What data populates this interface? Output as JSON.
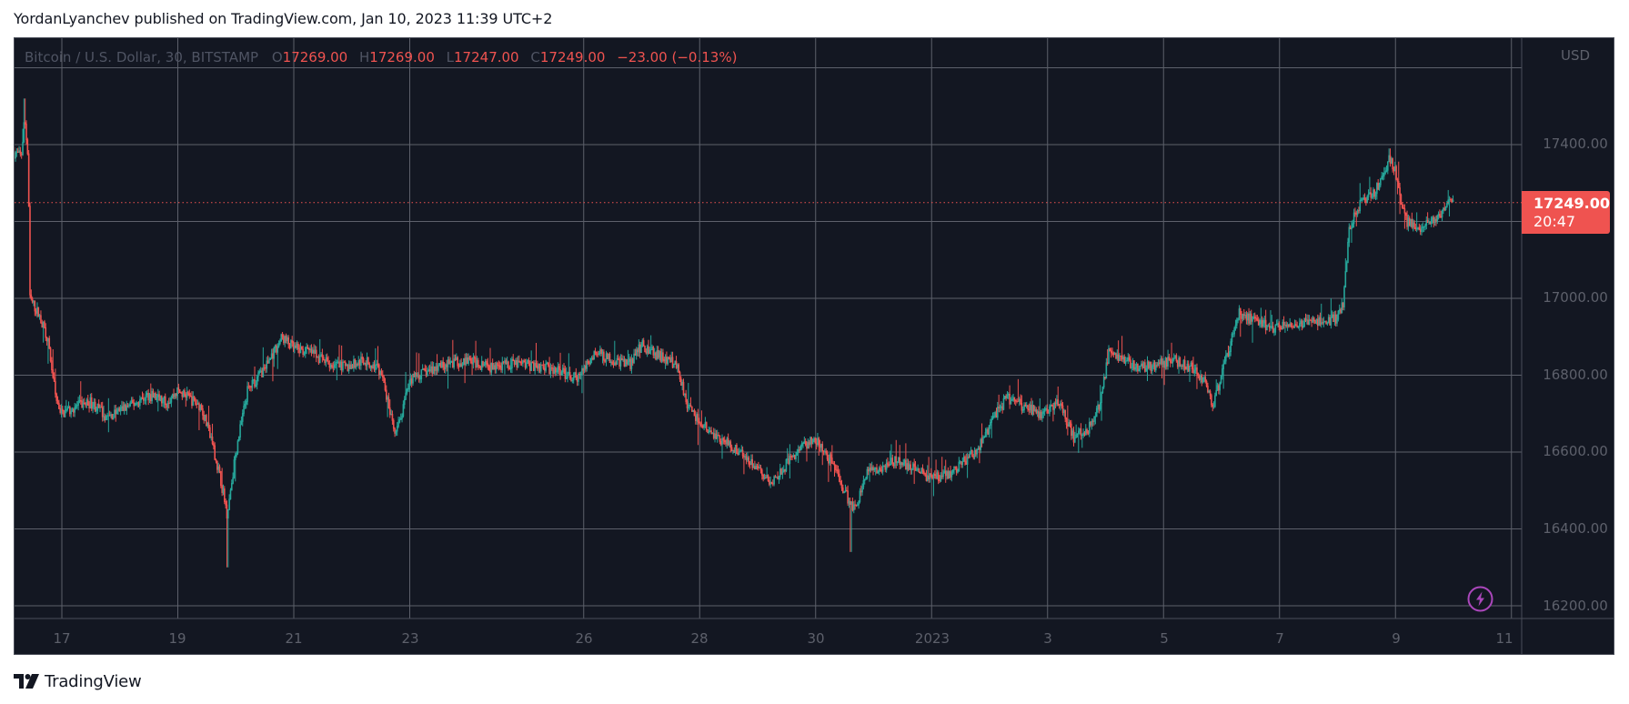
{
  "header": {
    "published_line": "YordanLyanchev published on TradingView.com, Jan 10, 2023 11:39 UTC+2"
  },
  "legend": {
    "symbol": "Bitcoin / U.S. Dollar, 30, BITSTAMP",
    "open_label": "O",
    "open": "17269.00",
    "high_label": "H",
    "high": "17269.00",
    "low_label": "L",
    "low": "17247.00",
    "close_label": "C",
    "close": "17249.00",
    "change": "−23.00 (−0.13%)"
  },
  "price_axis": {
    "currency": "USD",
    "ticks": [
      "17400.00",
      "17000.00",
      "16800.00",
      "16600.00",
      "16400.00",
      "16200.00"
    ],
    "last_price": "17249.00",
    "countdown": "20:47"
  },
  "time_axis": {
    "ticks": [
      "17",
      "19",
      "21",
      "23",
      "26",
      "28",
      "30",
      "2023",
      "3",
      "5",
      "7",
      "9",
      "11"
    ]
  },
  "colors": {
    "background": "#131722",
    "up": "#26a69a",
    "down": "#ef5350",
    "grid": "#5d606b",
    "last_price": "#ef5350",
    "bolt": "#ab47bc"
  },
  "footer": {
    "brand": "TradingView"
  },
  "chart_data": {
    "type": "candlestick",
    "title": "Bitcoin / U.S. Dollar, 30, BITSTAMP",
    "xlabel": "",
    "ylabel": "USD",
    "interval": "30",
    "exchange": "BITSTAMP",
    "ohlc_last": {
      "open": 17269.0,
      "high": 17269.0,
      "low": 17247.0,
      "close": 17249.0,
      "change": -23.0,
      "change_pct": -0.13
    },
    "ylim": [
      16165,
      17630
    ],
    "y_ticks": [
      16200,
      16400,
      16600,
      16800,
      17000,
      17200,
      17400,
      17600
    ],
    "y_tick_labels_visible": [
      "17400.00",
      "17000.00",
      "16800.00",
      "16600.00",
      "16400.00",
      "16200.00"
    ],
    "x_ticks": [
      {
        "label": "17",
        "day": 17
      },
      {
        "label": "19",
        "day": 19
      },
      {
        "label": "21",
        "day": 21
      },
      {
        "label": "23",
        "day": 23
      },
      {
        "label": "26",
        "day": 26
      },
      {
        "label": "28",
        "day": 28
      },
      {
        "label": "30",
        "day": 30
      },
      {
        "label": "2023",
        "day": 32
      },
      {
        "label": "3",
        "day": 34
      },
      {
        "label": "5",
        "day": 36
      },
      {
        "label": "7",
        "day": 38
      },
      {
        "label": "9",
        "day": 40
      },
      {
        "label": "11",
        "day": 42
      }
    ],
    "x_range_days": [
      16.18,
      41.4
    ],
    "grid": true,
    "last_price_line": 17249.0,
    "close_path": [
      [
        16.18,
        17380
      ],
      [
        16.3,
        17370
      ],
      [
        16.36,
        17470
      ],
      [
        16.42,
        17360
      ],
      [
        16.45,
        17000
      ],
      [
        16.6,
        16960
      ],
      [
        16.75,
        16900
      ],
      [
        16.9,
        16740
      ],
      [
        17.0,
        16700
      ],
      [
        17.25,
        16720
      ],
      [
        17.5,
        16730
      ],
      [
        17.8,
        16690
      ],
      [
        18.0,
        16710
      ],
      [
        18.3,
        16730
      ],
      [
        18.5,
        16750
      ],
      [
        18.8,
        16730
      ],
      [
        19.0,
        16760
      ],
      [
        19.2,
        16740
      ],
      [
        19.4,
        16720
      ],
      [
        19.6,
        16620
      ],
      [
        19.75,
        16520
      ],
      [
        19.85,
        16440
      ],
      [
        20.0,
        16600
      ],
      [
        20.2,
        16760
      ],
      [
        20.5,
        16820
      ],
      [
        20.8,
        16900
      ],
      [
        21.0,
        16870
      ],
      [
        21.3,
        16860
      ],
      [
        21.6,
        16830
      ],
      [
        21.9,
        16820
      ],
      [
        22.2,
        16840
      ],
      [
        22.5,
        16810
      ],
      [
        22.75,
        16640
      ],
      [
        22.9,
        16720
      ],
      [
        23.0,
        16790
      ],
      [
        23.3,
        16810
      ],
      [
        23.6,
        16830
      ],
      [
        24.0,
        16840
      ],
      [
        24.4,
        16820
      ],
      [
        24.8,
        16830
      ],
      [
        25.2,
        16825
      ],
      [
        25.6,
        16810
      ],
      [
        25.9,
        16790
      ],
      [
        26.2,
        16860
      ],
      [
        26.5,
        16840
      ],
      [
        26.8,
        16830
      ],
      [
        27.0,
        16880
      ],
      [
        27.3,
        16850
      ],
      [
        27.6,
        16830
      ],
      [
        27.8,
        16720
      ],
      [
        28.0,
        16680
      ],
      [
        28.2,
        16650
      ],
      [
        28.5,
        16620
      ],
      [
        28.8,
        16590
      ],
      [
        29.0,
        16560
      ],
      [
        29.2,
        16520
      ],
      [
        29.5,
        16570
      ],
      [
        29.8,
        16620
      ],
      [
        30.0,
        16630
      ],
      [
        30.3,
        16570
      ],
      [
        30.55,
        16480
      ],
      [
        30.7,
        16450
      ],
      [
        30.85,
        16540
      ],
      [
        31.1,
        16560
      ],
      [
        31.4,
        16580
      ],
      [
        31.7,
        16560
      ],
      [
        32.0,
        16530
      ],
      [
        32.3,
        16540
      ],
      [
        32.6,
        16580
      ],
      [
        32.9,
        16630
      ],
      [
        33.1,
        16700
      ],
      [
        33.3,
        16740
      ],
      [
        33.6,
        16720
      ],
      [
        33.9,
        16700
      ],
      [
        34.2,
        16730
      ],
      [
        34.45,
        16640
      ],
      [
        34.7,
        16660
      ],
      [
        34.9,
        16720
      ],
      [
        35.05,
        16860
      ],
      [
        35.3,
        16840
      ],
      [
        35.6,
        16820
      ],
      [
        35.9,
        16830
      ],
      [
        36.2,
        16840
      ],
      [
        36.5,
        16820
      ],
      [
        36.7,
        16790
      ],
      [
        36.85,
        16720
      ],
      [
        37.0,
        16800
      ],
      [
        37.15,
        16880
      ],
      [
        37.3,
        16960
      ],
      [
        37.6,
        16940
      ],
      [
        37.9,
        16920
      ],
      [
        38.2,
        16930
      ],
      [
        38.5,
        16940
      ],
      [
        38.8,
        16940
      ],
      [
        39.0,
        16950
      ],
      [
        39.1,
        16990
      ],
      [
        39.2,
        17180
      ],
      [
        39.35,
        17240
      ],
      [
        39.6,
        17270
      ],
      [
        39.8,
        17320
      ],
      [
        39.9,
        17370
      ],
      [
        40.0,
        17330
      ],
      [
        40.1,
        17250
      ],
      [
        40.2,
        17200
      ],
      [
        40.4,
        17180
      ],
      [
        40.6,
        17200
      ],
      [
        40.8,
        17220
      ],
      [
        40.95,
        17260
      ],
      [
        41.0,
        17249
      ]
    ],
    "notable_extremes": {
      "high": 17520,
      "high_day": 16.36,
      "low": 16300,
      "low_day": 19.85,
      "secondary_low": 16340,
      "secondary_low_day": 30.6,
      "recent_high": 17390,
      "recent_high_day": 39.9
    }
  }
}
